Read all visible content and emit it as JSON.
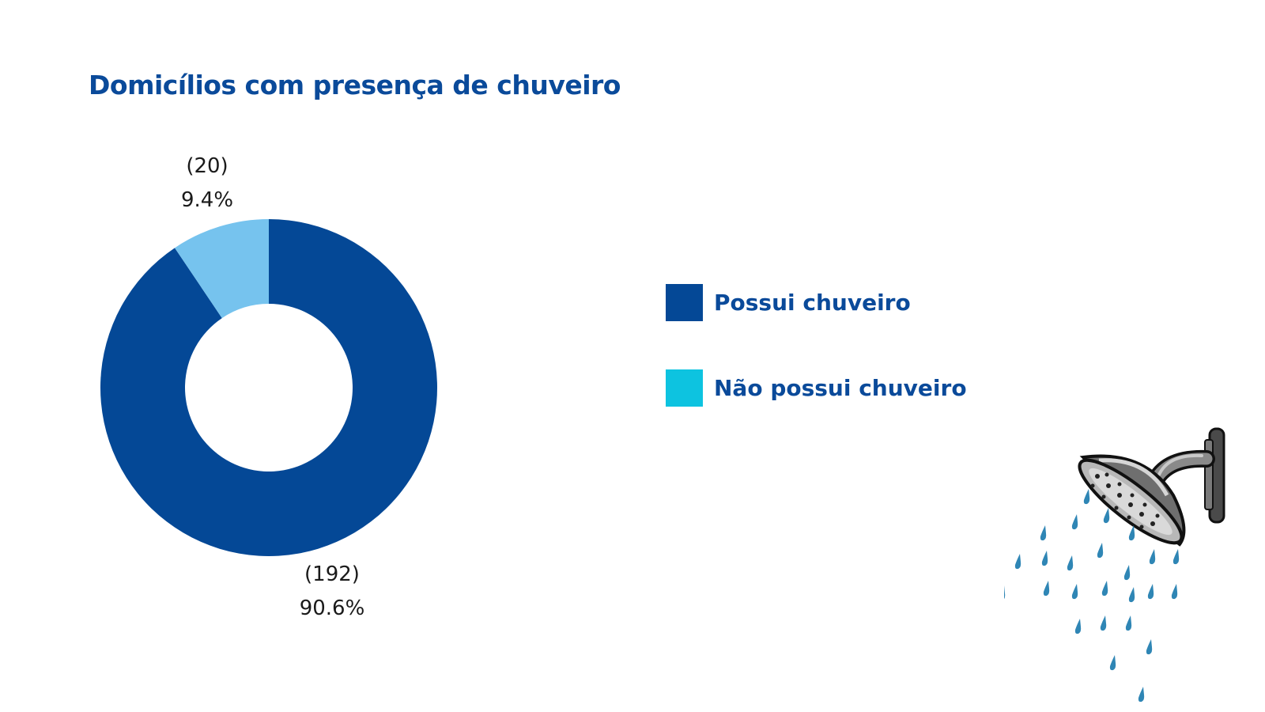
{
  "chart_data": {
    "type": "pie",
    "variant": "donut",
    "title": "Domicílios com presença de chuveiro",
    "categories": [
      "Possui chuveiro",
      "Não possui chuveiro"
    ],
    "values": [
      192,
      20
    ],
    "percent_labels": [
      "90.6%",
      "9.4%"
    ],
    "count_labels": [
      "(192)",
      "(20)"
    ],
    "slice_colors": [
      "#044896",
      "#76c3ee"
    ],
    "legend": {
      "placement": "right",
      "entries": [
        {
          "label": "Possui chuveiro",
          "color": "#044896"
        },
        {
          "label": "Não possui chuveiro",
          "color": "#0dc3e0"
        }
      ]
    }
  },
  "decoration": {
    "icon": "shower-head-icon"
  }
}
